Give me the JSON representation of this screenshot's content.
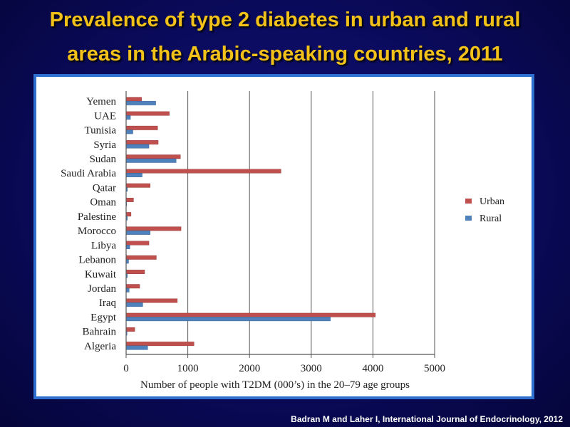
{
  "slide": {
    "title_line1": "Prevalence of type 2 diabetes in urban and rural",
    "title_line2": "areas in the Arabic-speaking countries, 2011",
    "citation": "Badran M and Laher I, International Journal of Endocrinology, 2012"
  },
  "colors": {
    "urban": "#c0504d",
    "rural": "#4f81bd",
    "title": "#f2c21a",
    "panel_border": "#2f6fcf"
  },
  "chart_data": {
    "type": "bar",
    "orientation": "horizontal",
    "categories": [
      "Yemen",
      "UAE",
      "Tunisia",
      "Syria",
      "Sudan",
      "Saudi Arabia",
      "Qatar",
      "Oman",
      "Palestine",
      "Morocco",
      "Libya",
      "Lebanon",
      "Kuwait",
      "Jordan",
      "Iraq",
      "Egypt",
      "Bahrain",
      "Algeria"
    ],
    "series": [
      {
        "name": "Urban",
        "values": [
          250,
          700,
          510,
          520,
          880,
          2510,
          390,
          120,
          80,
          890,
          370,
          490,
          300,
          220,
          830,
          4040,
          140,
          1100
        ]
      },
      {
        "name": "Rural",
        "values": [
          480,
          70,
          110,
          370,
          810,
          260,
          20,
          10,
          20,
          390,
          60,
          40,
          20,
          50,
          270,
          3310,
          15,
          350
        ]
      }
    ],
    "xlabel": "Number of people with T2DM (000’s) in the 20–79 age groups",
    "ylabel": "",
    "xlim": [
      0,
      5000
    ],
    "xticks": [
      "0",
      "1000",
      "2000",
      "3000",
      "4000",
      "5000"
    ],
    "grid": "vertical",
    "legend_position": "right"
  }
}
